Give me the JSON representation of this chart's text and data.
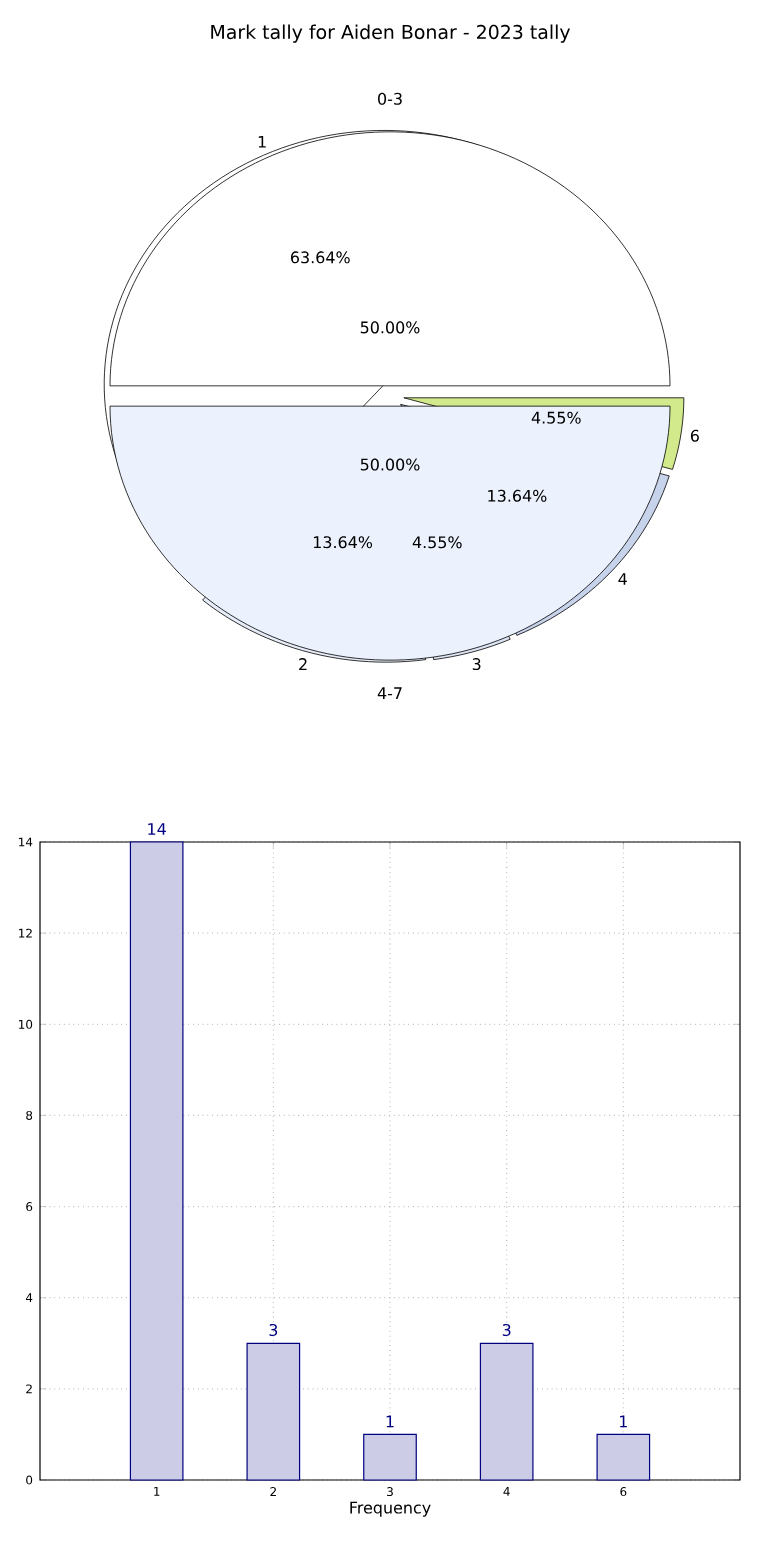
{
  "chart_data": [
    {
      "type": "pie",
      "title": "Mark tally for Aiden Bonar - 2023 tally",
      "categories": [
        "1",
        "2",
        "3",
        "4",
        "6"
      ],
      "values": [
        63.64,
        13.64,
        4.55,
        13.64,
        4.55
      ],
      "colors": [
        "#ffffff",
        "#e6ecf8",
        "#dde4f3",
        "#c6d3ea",
        "#d2ea8c"
      ],
      "value_labels": [
        "63.64%",
        "13.64%",
        "4.55%",
        "13.64%",
        "4.55%"
      ]
    },
    {
      "type": "pie",
      "categories": [
        "0-3",
        "4-7"
      ],
      "values": [
        50,
        50
      ],
      "colors": [
        "#ffffff",
        "#ebf1fd"
      ],
      "value_labels": [
        "50.00%",
        "50.00%"
      ]
    },
    {
      "type": "bar",
      "categories": [
        "1",
        "2",
        "3",
        "4",
        "6"
      ],
      "values": [
        14,
        3,
        1,
        3,
        1
      ],
      "color": "#cccce6",
      "ylim": [
        0,
        14
      ],
      "yticks": [
        0,
        2,
        4,
        6,
        8,
        10,
        12,
        14
      ],
      "xlabel": "Frequency",
      "grid": true,
      "data_labels": true
    }
  ]
}
